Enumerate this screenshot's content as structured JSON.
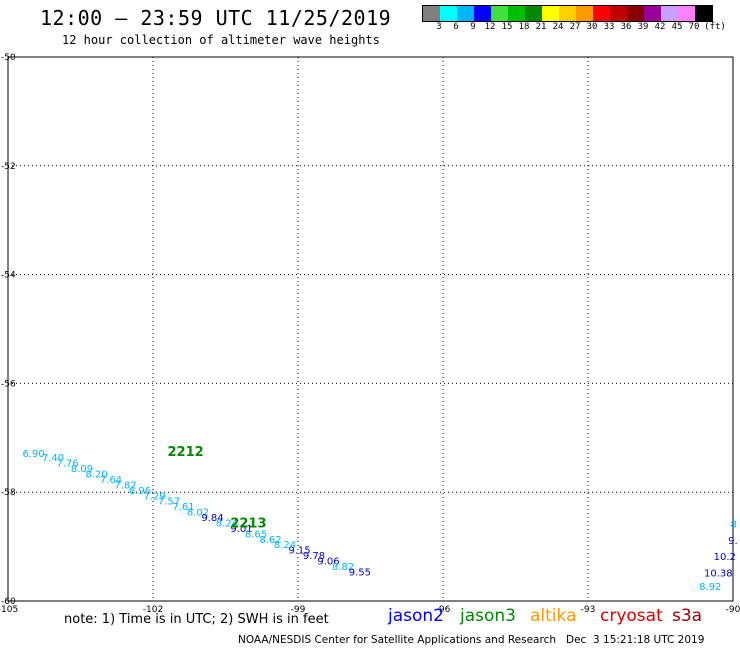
{
  "header": {
    "title": "12:00 – 23:59 UTC 11/25/2019",
    "subtitle": "12 hour collection of altimeter wave heights"
  },
  "colorbar": {
    "unit": "(ft)",
    "swatches": [
      "#808080",
      "#00ffff",
      "#00b4ff",
      "#0000ff",
      "#40e040",
      "#00c000",
      "#008800",
      "#ffff00",
      "#ffd000",
      "#ff9900",
      "#ff0000",
      "#c00000",
      "#880000",
      "#990099",
      "#c8a0ff",
      "#ff80ff",
      "#000000"
    ],
    "labels": [
      "3",
      "6",
      "9",
      "12",
      "15",
      "18",
      "21",
      "24",
      "27",
      "30",
      "33",
      "36",
      "39",
      "42",
      "45",
      "70"
    ]
  },
  "map": {
    "lon_range": [
      -105,
      -90
    ],
    "lat_range": [
      -60,
      -50
    ],
    "lon_ticks": [
      "-105",
      "-102",
      "-99",
      "-96",
      "-93",
      "-90"
    ],
    "lat_ticks": [
      "-50",
      "-52",
      "-54",
      "-56",
      "-58",
      "-60"
    ],
    "grid": "dotted"
  },
  "tracks": [
    {
      "label": "2212",
      "color": "#008800",
      "lon": -101.7,
      "lat": -57.33
    },
    {
      "label": "2213",
      "color": "#008800",
      "lon": -100.4,
      "lat": -58.65
    }
  ],
  "wave_heights": [
    {
      "text": "6.90",
      "color": "#00b4ff",
      "lon": -104.7,
      "lat": -57.35
    },
    {
      "text": "7.40",
      "color": "#00b4ff",
      "lon": -104.3,
      "lat": -57.43
    },
    {
      "text": "7.76",
      "color": "#00b4ff",
      "lon": -104.0,
      "lat": -57.53
    },
    {
      "text": "8.09",
      "color": "#00b4ff",
      "lon": -103.7,
      "lat": -57.63
    },
    {
      "text": "8.20",
      "color": "#00b4ff",
      "lon": -103.4,
      "lat": -57.73
    },
    {
      "text": "7.64",
      "color": "#00b4ff",
      "lon": -103.1,
      "lat": -57.83
    },
    {
      "text": "7.82",
      "color": "#00b4ff",
      "lon": -102.8,
      "lat": -57.93
    },
    {
      "text": "6.96",
      "color": "#00b4ff",
      "lon": -102.5,
      "lat": -58.03
    },
    {
      "text": "7.29",
      "color": "#00b4ff",
      "lon": -102.2,
      "lat": -58.13
    },
    {
      "text": "7.57",
      "color": "#00b4ff",
      "lon": -101.9,
      "lat": -58.23
    },
    {
      "text": "7.61",
      "color": "#00b4ff",
      "lon": -101.6,
      "lat": -58.33
    },
    {
      "text": "8.02",
      "color": "#00b4ff",
      "lon": -101.3,
      "lat": -58.43
    },
    {
      "text": "9.84",
      "color": "#0000cc",
      "lon": -101.0,
      "lat": -58.53
    },
    {
      "text": "8.24",
      "color": "#00b4ff",
      "lon": -100.7,
      "lat": -58.63
    },
    {
      "text": "9.01",
      "color": "#0000cc",
      "lon": -100.4,
      "lat": -58.73
    },
    {
      "text": "8.65",
      "color": "#00b4ff",
      "lon": -100.1,
      "lat": -58.83
    },
    {
      "text": "8.62",
      "color": "#00b4ff",
      "lon": -99.8,
      "lat": -58.93
    },
    {
      "text": "8.24",
      "color": "#00b4ff",
      "lon": -99.5,
      "lat": -59.03
    },
    {
      "text": "9.15",
      "color": "#0000cc",
      "lon": -99.2,
      "lat": -59.13
    },
    {
      "text": "9.78",
      "color": "#0000cc",
      "lon": -98.9,
      "lat": -59.23
    },
    {
      "text": "9.06",
      "color": "#0000cc",
      "lon": -98.6,
      "lat": -59.33
    },
    {
      "text": "8.82",
      "color": "#00b4ff",
      "lon": -98.3,
      "lat": -59.43
    },
    {
      "text": "9.55",
      "color": "#0000cc",
      "lon": -97.95,
      "lat": -59.53
    },
    {
      "text": "8",
      "color": "#00b4ff",
      "lon": -90.05,
      "lat": -58.65
    },
    {
      "text": "9.",
      "color": "#0000cc",
      "lon": -90.1,
      "lat": -58.95
    },
    {
      "text": "10.2",
      "color": "#0000cc",
      "lon": -90.4,
      "lat": -59.25
    },
    {
      "text": "10.38",
      "color": "#0000cc",
      "lon": -90.6,
      "lat": -59.55
    },
    {
      "text": "8.92",
      "color": "#00b4ff",
      "lon": -90.7,
      "lat": -59.8
    }
  ],
  "footer": {
    "note": "note: 1) Time is in UTC; 2) SWH is in feet",
    "legend": [
      {
        "name": "jason2",
        "color": "#0000ff"
      },
      {
        "name": "jason3",
        "color": "#008800"
      },
      {
        "name": "altika",
        "color": "#ff9900"
      },
      {
        "name": "cryosat",
        "color": "#dd0000"
      },
      {
        "name": "s3a",
        "color": "#990000"
      }
    ],
    "credit": "NOAA/NESDIS Center for Satellite Applications and Research   Dec  3 15:21:18 UTC 2019"
  }
}
